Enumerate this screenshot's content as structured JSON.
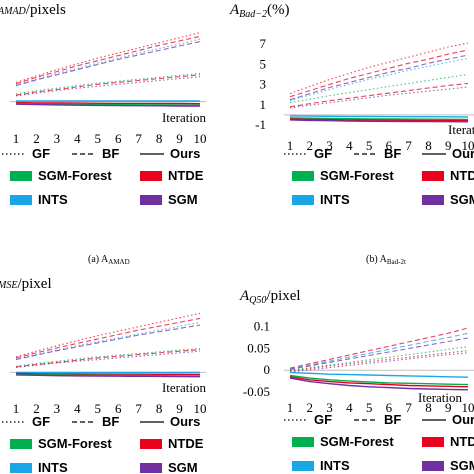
{
  "colors": {
    "SGM-Forest": "#00b050",
    "NTDE": "#e8001c",
    "INTS": "#1aa6e6",
    "SGM": "#7030a0"
  },
  "legend": {
    "styles": [
      {
        "label": "GF",
        "dash": "dotted"
      },
      {
        "label": "BF",
        "dash": "dashed"
      },
      {
        "label": "Ours",
        "dash": "solid"
      }
    ],
    "methods": [
      {
        "label": "SGM-Forest",
        "color": "#00b050"
      },
      {
        "label": "NTDE",
        "color": "#e8001c"
      },
      {
        "label": "INTS",
        "color": "#1aa6e6"
      },
      {
        "label": "SGM",
        "color": "#7030a0"
      }
    ]
  },
  "chart_data": [
    {
      "type": "line",
      "panel": "a",
      "title_main": "A",
      "title_sub": "AMAD",
      "title_unit": "/pixels",
      "caption": "(a) A",
      "caption_sub": "AMAD",
      "xlabel": "Iteration",
      "x": [
        1,
        2,
        3,
        4,
        5,
        6,
        7,
        8,
        9,
        10
      ],
      "yticks": [],
      "ylim": [
        -0.5,
        5.6
      ],
      "series": [
        {
          "method": "NTDE",
          "style": "GF",
          "values": [
            1.5,
            2.0,
            2.5,
            2.95,
            3.4,
            3.8,
            4.2,
            4.6,
            5.0,
            5.4
          ]
        },
        {
          "method": "NTDE",
          "style": "BF",
          "values": [
            1.4,
            1.9,
            2.35,
            2.8,
            3.2,
            3.6,
            4.0,
            4.4,
            4.75,
            5.1
          ]
        },
        {
          "method": "INTS",
          "style": "GF",
          "values": [
            1.3,
            1.75,
            2.2,
            2.6,
            3.0,
            3.4,
            3.8,
            4.15,
            4.5,
            4.9
          ]
        },
        {
          "method": "SGM",
          "style": "BF",
          "values": [
            1.25,
            1.7,
            2.1,
            2.5,
            2.9,
            3.3,
            3.65,
            4.0,
            4.35,
            4.7
          ]
        },
        {
          "method": "SGM-Forest",
          "style": "GF",
          "values": [
            0.6,
            0.85,
            1.05,
            1.25,
            1.45,
            1.6,
            1.75,
            1.9,
            2.05,
            2.2
          ]
        },
        {
          "method": "NTDE",
          "style": "BF",
          "values": [
            0.5,
            0.75,
            0.95,
            1.15,
            1.35,
            1.5,
            1.65,
            1.8,
            1.95,
            2.1
          ]
        },
        {
          "method": "SGM",
          "style": "GF",
          "values": [
            0.45,
            0.65,
            0.85,
            1.05,
            1.2,
            1.35,
            1.5,
            1.65,
            1.8,
            1.95
          ]
        },
        {
          "method": "INTS",
          "style": "Ours",
          "values": [
            0.05,
            0.05,
            0.05,
            0.05,
            0.05,
            0.05,
            0.05,
            0.05,
            0.05,
            0.05
          ]
        },
        {
          "method": "NTDE",
          "style": "Ours",
          "values": [
            -0.08,
            -0.1,
            -0.11,
            -0.12,
            -0.13,
            -0.14,
            -0.14,
            -0.15,
            -0.15,
            -0.16
          ]
        },
        {
          "method": "SGM-Forest",
          "style": "Ours",
          "values": [
            -0.15,
            -0.18,
            -0.2,
            -0.22,
            -0.23,
            -0.24,
            -0.25,
            -0.26,
            -0.27,
            -0.28
          ]
        },
        {
          "method": "SGM",
          "style": "Ours",
          "values": [
            -0.2,
            -0.23,
            -0.26,
            -0.28,
            -0.3,
            -0.31,
            -0.32,
            -0.33,
            -0.34,
            -0.35
          ]
        }
      ]
    },
    {
      "type": "line",
      "panel": "b",
      "title_main": "A",
      "title_sub": "Bad−2",
      "title_unit": "(%)",
      "caption": "(b) A",
      "caption_sub": "Bad-2t",
      "xlabel": "Iteration",
      "x": [
        1,
        2,
        3,
        4,
        5,
        6,
        7,
        8,
        9,
        10
      ],
      "yticks": [
        "7",
        "5",
        "3",
        "1",
        "-1"
      ],
      "ytick_values": [
        7,
        5,
        3,
        1,
        -1
      ],
      "ylim": [
        -1,
        7
      ],
      "series": [
        {
          "method": "NTDE",
          "style": "GF",
          "values": [
            2.1,
            2.8,
            3.5,
            4.1,
            4.7,
            5.2,
            5.7,
            6.2,
            6.7,
            7.1
          ]
        },
        {
          "method": "NTDE",
          "style": "BF",
          "values": [
            1.8,
            2.4,
            3.0,
            3.6,
            4.1,
            4.6,
            5.1,
            5.5,
            6.0,
            6.4
          ]
        },
        {
          "method": "SGM",
          "style": "BF",
          "values": [
            1.5,
            2.1,
            2.7,
            3.2,
            3.7,
            4.2,
            4.6,
            5.1,
            5.5,
            5.9
          ]
        },
        {
          "method": "INTS",
          "style": "GF",
          "values": [
            1.4,
            1.95,
            2.5,
            3.0,
            3.5,
            3.95,
            4.4,
            4.8,
            5.2,
            5.6
          ]
        },
        {
          "method": "SGM-Forest",
          "style": "GF",
          "values": [
            1.2,
            1.55,
            1.9,
            2.2,
            2.5,
            2.8,
            3.1,
            3.4,
            3.7,
            4.0
          ]
        },
        {
          "method": "NTDE",
          "style": "BF",
          "values": [
            0.8,
            1.1,
            1.4,
            1.65,
            1.9,
            2.15,
            2.4,
            2.65,
            2.9,
            3.1
          ]
        },
        {
          "method": "SGM",
          "style": "GF",
          "values": [
            0.7,
            0.95,
            1.2,
            1.45,
            1.7,
            1.95,
            2.15,
            2.35,
            2.55,
            2.75
          ]
        },
        {
          "method": "INTS",
          "style": "Ours",
          "values": [
            -0.1,
            -0.12,
            -0.14,
            -0.15,
            -0.16,
            -0.17,
            -0.18,
            -0.18,
            -0.19,
            -0.2
          ]
        },
        {
          "method": "SGM-Forest",
          "style": "Ours",
          "values": [
            -0.3,
            -0.33,
            -0.36,
            -0.38,
            -0.4,
            -0.41,
            -0.42,
            -0.43,
            -0.44,
            -0.45
          ]
        },
        {
          "method": "NTDE",
          "style": "Ours",
          "values": [
            -0.4,
            -0.44,
            -0.47,
            -0.5,
            -0.52,
            -0.53,
            -0.54,
            -0.55,
            -0.56,
            -0.57
          ]
        },
        {
          "method": "SGM",
          "style": "Ours",
          "values": [
            -0.5,
            -0.55,
            -0.58,
            -0.61,
            -0.63,
            -0.64,
            -0.65,
            -0.66,
            -0.67,
            -0.68
          ]
        }
      ]
    },
    {
      "type": "line",
      "panel": "c",
      "title_main": "",
      "title_sub": "MSE",
      "title_unit": "/pixel",
      "caption": "",
      "caption_sub": "",
      "xlabel": "Iteration",
      "x": [
        1,
        2,
        3,
        4,
        5,
        6,
        7,
        8,
        9,
        10
      ],
      "yticks": [],
      "ylim": [
        -0.5,
        5.6
      ],
      "series": [
        {
          "method": "NTDE",
          "style": "GF",
          "values": [
            1.4,
            1.9,
            2.4,
            2.85,
            3.3,
            3.7,
            4.1,
            4.5,
            4.9,
            5.3
          ]
        },
        {
          "method": "NTDE",
          "style": "BF",
          "values": [
            1.3,
            1.75,
            2.2,
            2.6,
            3.0,
            3.4,
            3.8,
            4.15,
            4.5,
            4.85
          ]
        },
        {
          "method": "INTS",
          "style": "GF",
          "values": [
            1.2,
            1.6,
            2.0,
            2.4,
            2.75,
            3.1,
            3.45,
            3.8,
            4.15,
            4.5
          ]
        },
        {
          "method": "SGM",
          "style": "BF",
          "values": [
            1.15,
            1.55,
            1.95,
            2.3,
            2.65,
            3.0,
            3.35,
            3.65,
            3.95,
            4.25
          ]
        },
        {
          "method": "SGM-Forest",
          "style": "GF",
          "values": [
            0.55,
            0.8,
            1.0,
            1.2,
            1.4,
            1.55,
            1.7,
            1.85,
            2.0,
            2.15
          ]
        },
        {
          "method": "NTDE",
          "style": "BF",
          "values": [
            0.5,
            0.7,
            0.9,
            1.1,
            1.3,
            1.45,
            1.6,
            1.75,
            1.9,
            2.05
          ]
        },
        {
          "method": "SGM",
          "style": "GF",
          "values": [
            0.45,
            0.65,
            0.85,
            1.0,
            1.15,
            1.3,
            1.45,
            1.6,
            1.75,
            1.9
          ]
        },
        {
          "method": "INTS",
          "style": "Ours",
          "values": [
            0.0,
            0.0,
            0.0,
            0.0,
            0.0,
            0.0,
            0.0,
            0.0,
            0.0,
            0.0
          ]
        },
        {
          "method": "NTDE",
          "style": "Ours",
          "values": [
            -0.1,
            -0.12,
            -0.13,
            -0.14,
            -0.15,
            -0.16,
            -0.16,
            -0.17,
            -0.17,
            -0.18
          ]
        },
        {
          "method": "SGM-Forest",
          "style": "Ours",
          "values": [
            -0.18,
            -0.21,
            -0.23,
            -0.25,
            -0.26,
            -0.27,
            -0.28,
            -0.29,
            -0.3,
            -0.31
          ]
        },
        {
          "method": "SGM",
          "style": "Ours",
          "values": [
            -0.22,
            -0.26,
            -0.29,
            -0.31,
            -0.33,
            -0.34,
            -0.35,
            -0.36,
            -0.37,
            -0.38
          ]
        }
      ]
    },
    {
      "type": "line",
      "panel": "d",
      "title_main": "A",
      "title_sub": "Q50",
      "title_unit": "/pixel",
      "caption": "",
      "caption_sub": "",
      "xlabel": "Iteration",
      "x": [
        1,
        2,
        3,
        4,
        5,
        6,
        7,
        8,
        9,
        10
      ],
      "yticks": [
        "0.1",
        "0.05",
        "0",
        "-0.05"
      ],
      "ytick_values": [
        0.1,
        0.05,
        0,
        -0.05
      ],
      "ylim": [
        -0.05,
        0.12
      ],
      "series": [
        {
          "method": "NTDE",
          "style": "BF",
          "values": [
            0.005,
            0.015,
            0.025,
            0.035,
            0.045,
            0.055,
            0.065,
            0.075,
            0.085,
            0.097
          ]
        },
        {
          "method": "INTS",
          "style": "BF",
          "values": [
            0.003,
            0.012,
            0.021,
            0.03,
            0.039,
            0.048,
            0.057,
            0.066,
            0.075,
            0.085
          ]
        },
        {
          "method": "SGM",
          "style": "BF",
          "values": [
            0.002,
            0.01,
            0.018,
            0.026,
            0.034,
            0.042,
            0.05,
            0.058,
            0.066,
            0.074
          ]
        },
        {
          "method": "SGM-Forest",
          "style": "GF",
          "values": [
            0.0,
            0.006,
            0.012,
            0.018,
            0.024,
            0.03,
            0.036,
            0.042,
            0.048,
            0.054
          ]
        },
        {
          "method": "NTDE",
          "style": "GF",
          "values": [
            -0.002,
            0.004,
            0.01,
            0.015,
            0.02,
            0.025,
            0.03,
            0.035,
            0.04,
            0.045
          ]
        },
        {
          "method": "SGM",
          "style": "GF",
          "values": [
            -0.004,
            0.001,
            0.006,
            0.011,
            0.016,
            0.021,
            0.026,
            0.031,
            0.036,
            0.04
          ]
        },
        {
          "method": "INTS",
          "style": "Ours",
          "values": [
            -0.005,
            -0.007,
            -0.009,
            -0.01,
            -0.011,
            -0.012,
            -0.013,
            -0.014,
            -0.015,
            -0.016
          ]
        },
        {
          "method": "SGM-Forest",
          "style": "Ours",
          "values": [
            -0.012,
            -0.018,
            -0.022,
            -0.025,
            -0.027,
            -0.029,
            -0.03,
            -0.031,
            -0.032,
            -0.033
          ]
        },
        {
          "method": "NTDE",
          "style": "Ours",
          "values": [
            -0.015,
            -0.022,
            -0.026,
            -0.029,
            -0.031,
            -0.033,
            -0.035,
            -0.036,
            -0.037,
            -0.038
          ]
        },
        {
          "method": "SGM",
          "style": "Ours",
          "values": [
            -0.018,
            -0.026,
            -0.031,
            -0.035,
            -0.038,
            -0.04,
            -0.042,
            -0.043,
            -0.044,
            -0.045
          ]
        }
      ]
    }
  ]
}
